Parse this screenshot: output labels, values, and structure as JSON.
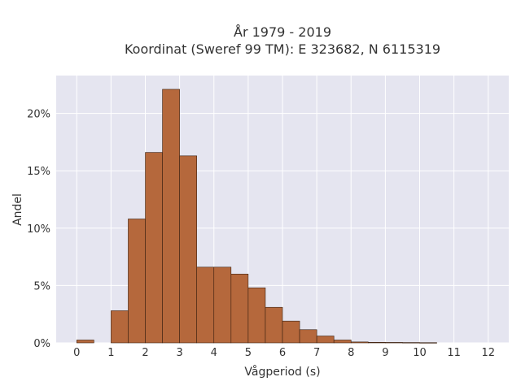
{
  "chart_data": {
    "type": "bar",
    "title_line1": "År 1979 - 2019",
    "title_line2": "Koordinat (Sweref 99 TM): E 323682, N 6115319",
    "xlabel": "Vågperiod (s)",
    "ylabel": "Andel",
    "xlim": [
      -0.6,
      12.6
    ],
    "ylim": [
      0,
      0.233
    ],
    "x_ticks": [
      0,
      1,
      2,
      3,
      4,
      5,
      6,
      7,
      8,
      9,
      10,
      11,
      12
    ],
    "y_ticks": [
      0,
      0.05,
      0.1,
      0.15,
      0.2
    ],
    "y_tick_labels": [
      "0%",
      "5%",
      "10%",
      "15%",
      "20%"
    ],
    "bin_width": 0.5,
    "bins": [
      {
        "x0": 0.0,
        "value": 0.0025
      },
      {
        "x0": 0.5,
        "value": 0.0
      },
      {
        "x0": 1.0,
        "value": 0.028
      },
      {
        "x0": 1.5,
        "value": 0.108
      },
      {
        "x0": 2.0,
        "value": 0.166
      },
      {
        "x0": 2.5,
        "value": 0.221
      },
      {
        "x0": 3.0,
        "value": 0.163
      },
      {
        "x0": 3.5,
        "value": 0.066
      },
      {
        "x0": 4.0,
        "value": 0.066
      },
      {
        "x0": 4.5,
        "value": 0.06
      },
      {
        "x0": 5.0,
        "value": 0.048
      },
      {
        "x0": 5.5,
        "value": 0.031
      },
      {
        "x0": 6.0,
        "value": 0.019
      },
      {
        "x0": 6.5,
        "value": 0.0115
      },
      {
        "x0": 7.0,
        "value": 0.006
      },
      {
        "x0": 7.5,
        "value": 0.0025
      },
      {
        "x0": 8.0,
        "value": 0.0008
      },
      {
        "x0": 8.5,
        "value": 0.0005
      },
      {
        "x0": 9.0,
        "value": 0.0004
      },
      {
        "x0": 9.5,
        "value": 0.0003
      },
      {
        "x0": 10.0,
        "value": 0.0002
      }
    ],
    "grid": true,
    "colors": {
      "bar_fill": "#b5683c",
      "bar_stroke": "#3a2010",
      "plot_bg": "#e5e5f0",
      "grid": "#ffffff"
    }
  }
}
